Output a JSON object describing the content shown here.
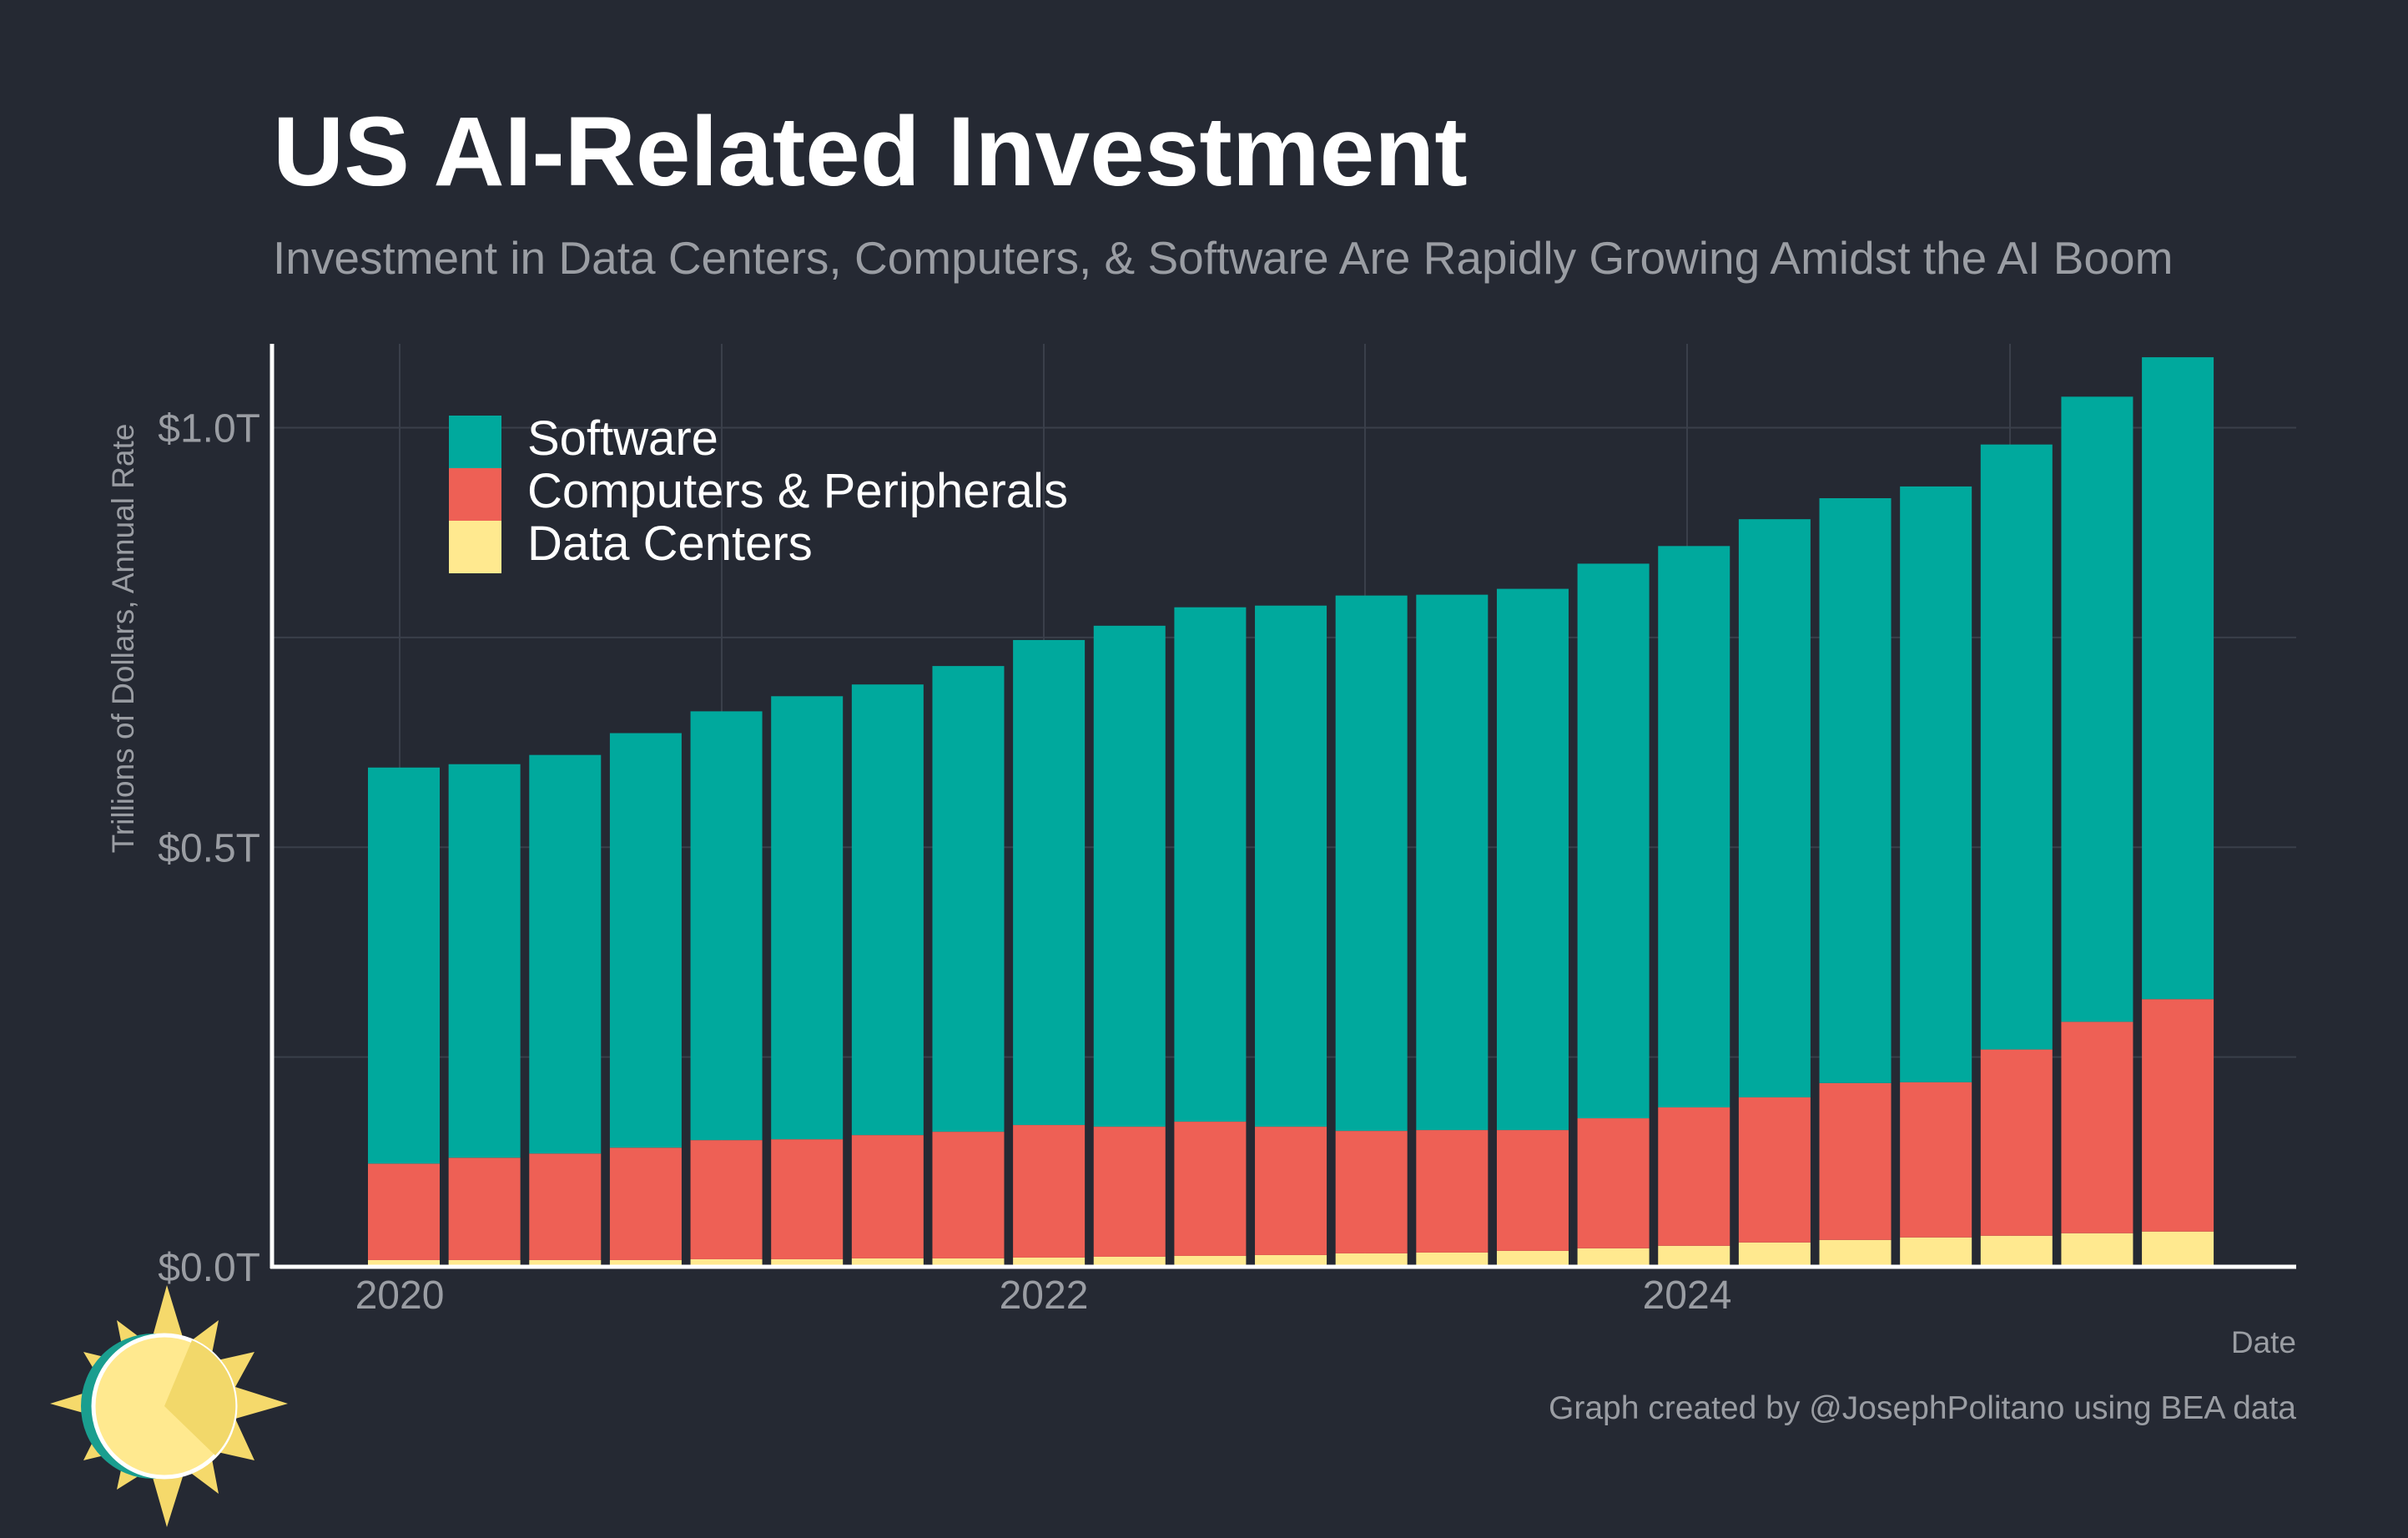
{
  "page": {
    "title": "US AI-Related Investment",
    "subtitle": "Investment in Data Centers, Computers, & Software Are Rapidly Growing Amidst the AI Boom",
    "credit": "Graph created by @JosephPolitano using BEA data"
  },
  "colors": {
    "background": "#252933",
    "software": "#00A99D",
    "computers": "#EE6055",
    "data_centers": "#FFE98F",
    "text_main": "#FFFFFF",
    "text_muted": "#9A9DA3",
    "grid": "#3A3F4A",
    "axis": "#FFFFFF"
  },
  "chart_data": {
    "type": "bar",
    "stacked": true,
    "x_label": "Date",
    "y_label": "Trillions of Dollars, Annual Rate",
    "x_ticks": [
      "2020",
      "2022",
      "2024"
    ],
    "y_ticks": [
      "$0.0T",
      "$0.5T",
      "$1.0T"
    ],
    "ylim": [
      0,
      1.1
    ],
    "grid": true,
    "legend_position": "top-left",
    "categories": [
      "2020 Q1",
      "2020 Q2",
      "2020 Q3",
      "2020 Q4",
      "2021 Q1",
      "2021 Q2",
      "2021 Q3",
      "2021 Q4",
      "2022 Q1",
      "2022 Q2",
      "2022 Q3",
      "2022 Q4",
      "2023 Q1",
      "2023 Q2",
      "2023 Q3",
      "2023 Q4",
      "2024 Q1",
      "2024 Q2",
      "2024 Q3",
      "2024 Q4",
      "2025 Q1",
      "2025 Q2",
      "2025 Q3"
    ],
    "series": [
      {
        "name": "Data Centers",
        "color_key": "data_centers",
        "values": [
          0.008,
          0.008,
          0.008,
          0.008,
          0.009,
          0.009,
          0.01,
          0.01,
          0.011,
          0.012,
          0.013,
          0.014,
          0.016,
          0.017,
          0.019,
          0.022,
          0.025,
          0.029,
          0.032,
          0.035,
          0.037,
          0.04,
          0.042
        ]
      },
      {
        "name": "Computers & Peripherals",
        "color_key": "computers",
        "values": [
          0.115,
          0.122,
          0.127,
          0.134,
          0.142,
          0.143,
          0.147,
          0.151,
          0.158,
          0.155,
          0.16,
          0.153,
          0.146,
          0.146,
          0.144,
          0.155,
          0.165,
          0.173,
          0.187,
          0.185,
          0.222,
          0.252,
          0.277
        ]
      },
      {
        "name": "Software",
        "color_key": "software",
        "values": [
          0.472,
          0.469,
          0.475,
          0.494,
          0.511,
          0.528,
          0.537,
          0.555,
          0.578,
          0.597,
          0.613,
          0.621,
          0.638,
          0.638,
          0.645,
          0.661,
          0.669,
          0.689,
          0.697,
          0.71,
          0.721,
          0.745,
          0.765
        ]
      }
    ]
  }
}
